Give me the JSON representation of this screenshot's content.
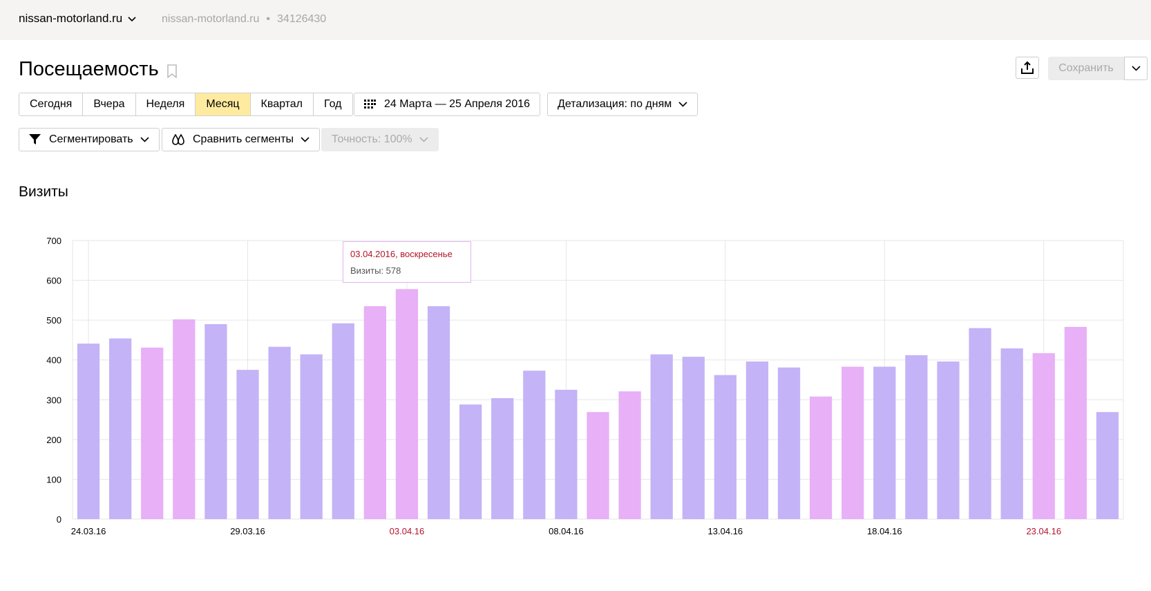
{
  "header": {
    "counter_name": "nissan-motorland.ru",
    "counter_site": "nissan-motorland.ru",
    "counter_separator": "•",
    "counter_id": "34126430"
  },
  "page": {
    "title": "Посещаемость",
    "save_label": "Сохранить"
  },
  "periods": [
    {
      "label": "Сегодня",
      "active": false
    },
    {
      "label": "Вчера",
      "active": false
    },
    {
      "label": "Неделя",
      "active": false
    },
    {
      "label": "Месяц",
      "active": true
    },
    {
      "label": "Квартал",
      "active": false
    },
    {
      "label": "Год",
      "active": false
    }
  ],
  "date_range": "24 Марта — 25 Апреля 2016",
  "detail_label": "Детализация: по дням",
  "segment_label": "Сегментировать",
  "compare_label": "Сравнить сегменты",
  "accuracy_label": "Точность: 100%",
  "section_title": "Визиты",
  "tooltip": {
    "date": "03.04.2016, воскресенье",
    "value": "Визиты: 578"
  },
  "colors": {
    "weekday_bar": "#c4b3f7",
    "weekend_bar": "#e8b0f7",
    "highlight_label": "#b3142b",
    "active_period": "#ffeba0"
  },
  "chart_data": {
    "type": "bar",
    "title": "Визиты",
    "ylim": [
      0,
      700
    ],
    "yticks": [
      0,
      100,
      200,
      300,
      400,
      500,
      600,
      700
    ],
    "x_tick_labels": [
      {
        "label": "24.03.16",
        "index": 0,
        "weekend": false
      },
      {
        "label": "29.03.16",
        "index": 5,
        "weekend": false
      },
      {
        "label": "03.04.16",
        "index": 10,
        "weekend": true
      },
      {
        "label": "08.04.16",
        "index": 15,
        "weekend": false
      },
      {
        "label": "13.04.16",
        "index": 20,
        "weekend": false
      },
      {
        "label": "18.04.16",
        "index": 25,
        "weekend": false
      },
      {
        "label": "23.04.16",
        "index": 30,
        "weekend": true
      }
    ],
    "series": [
      {
        "values": [
          441,
          454,
          431,
          502,
          490,
          375,
          433,
          414,
          492,
          535,
          578,
          535,
          288,
          304,
          373,
          325,
          269,
          321,
          414,
          408,
          362,
          396,
          381,
          308,
          383,
          383,
          412,
          396,
          480,
          429,
          417,
          483,
          269
        ],
        "weekend": [
          false,
          false,
          true,
          true,
          false,
          false,
          false,
          false,
          false,
          true,
          true,
          false,
          false,
          false,
          false,
          false,
          true,
          true,
          false,
          false,
          false,
          false,
          false,
          true,
          true,
          false,
          false,
          false,
          false,
          false,
          true,
          true,
          false
        ]
      }
    ],
    "grid": true
  }
}
